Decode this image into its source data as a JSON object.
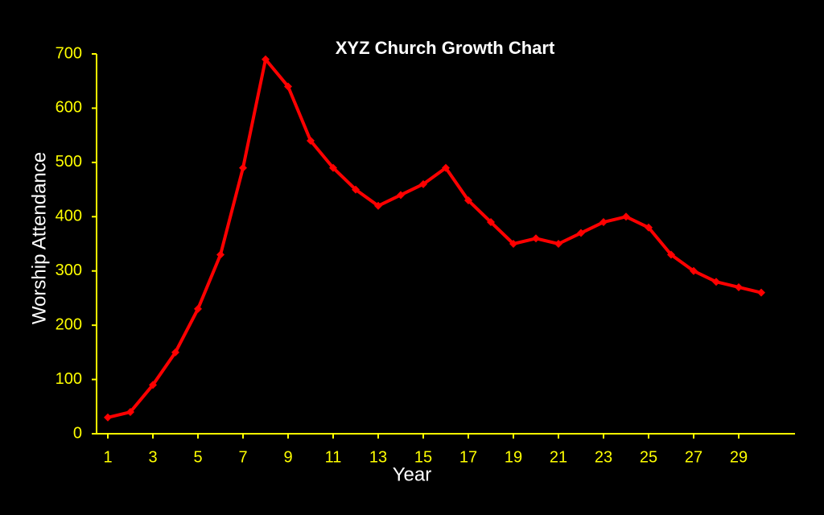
{
  "chart_data": {
    "type": "line",
    "title": "XYZ Church Growth Chart",
    "x_label": "Year",
    "y_label": "Worship  Attendance",
    "x": [
      1,
      2,
      3,
      4,
      5,
      6,
      7,
      8,
      9,
      10,
      11,
      12,
      13,
      14,
      15,
      16,
      17,
      18,
      19,
      20,
      21,
      22,
      23,
      24,
      25,
      26,
      27,
      28,
      29,
      30
    ],
    "series": [
      {
        "name": "Worship Attendance",
        "color": "#ff0000",
        "values": [
          30,
          40,
          90,
          150,
          230,
          330,
          490,
          690,
          640,
          540,
          490,
          450,
          420,
          440,
          460,
          490,
          430,
          390,
          350,
          360,
          350,
          370,
          390,
          400,
          380,
          330,
          300,
          280,
          270,
          260
        ]
      }
    ],
    "xlim": [
      0.5,
      31.5
    ],
    "xticks": [
      1,
      3,
      5,
      7,
      9,
      11,
      13,
      15,
      17,
      19,
      21,
      23,
      25,
      27,
      29
    ],
    "ylim": [
      0,
      700
    ],
    "yticks": [
      0,
      100,
      200,
      300,
      400,
      500,
      600,
      700
    ],
    "axis_color": "#ffff00",
    "background": "#000000"
  }
}
